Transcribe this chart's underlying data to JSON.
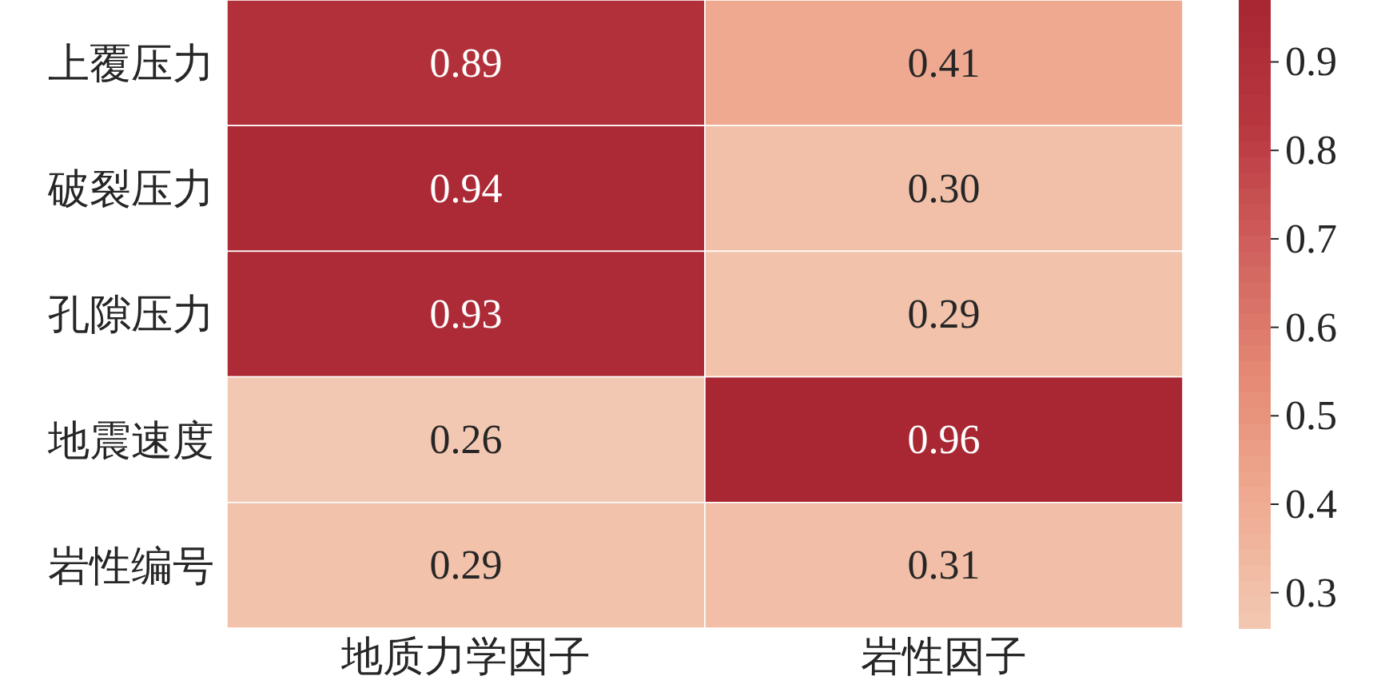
{
  "chart_data": {
    "type": "heatmap",
    "categories": [
      "地质力学因子",
      "岩性因子"
    ],
    "y_categories": [
      "上覆压力",
      "破裂压力",
      "孔隙压力",
      "地震速度",
      "岩性编号"
    ],
    "cells": [
      [
        0.89,
        0.41
      ],
      [
        0.94,
        0.3
      ],
      [
        0.93,
        0.29
      ],
      [
        0.26,
        0.96
      ],
      [
        0.29,
        0.31
      ]
    ],
    "cell_labels": [
      [
        "0.89",
        "0.41"
      ],
      [
        "0.94",
        "0.30"
      ],
      [
        "0.93",
        "0.29"
      ],
      [
        "0.26",
        "0.96"
      ],
      [
        "0.29",
        "0.31"
      ]
    ],
    "clim": [
      0.26,
      0.97
    ],
    "cticks": [
      0.3,
      0.4,
      0.5,
      0.6,
      0.7,
      0.8,
      0.9
    ]
  }
}
